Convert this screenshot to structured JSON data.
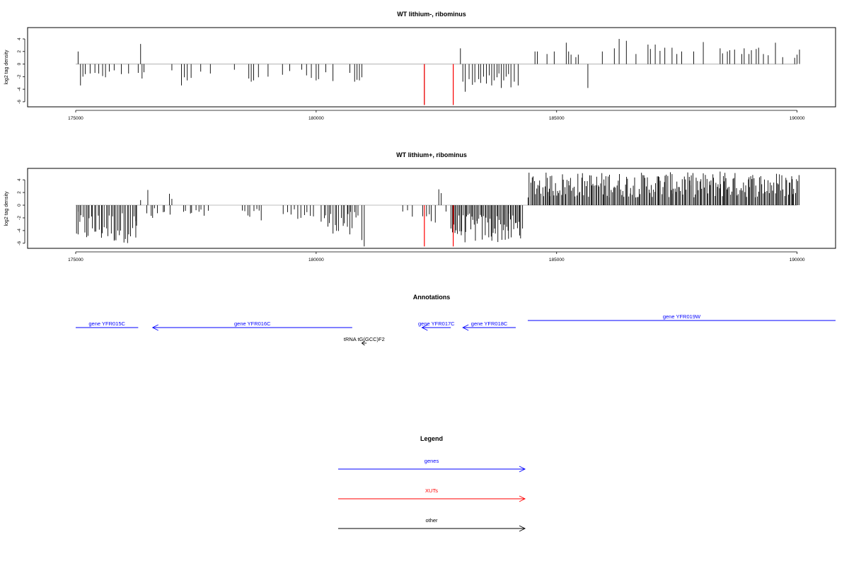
{
  "colors": {
    "gene": "#0000ff",
    "xut": "#ff0000",
    "other": "#000000",
    "bar": "#000000",
    "baseline": "#aaaaaa"
  },
  "chart_data": [
    {
      "type": "bar",
      "title": "WT lithium-, ribominus",
      "ylabel": "log2 tag density",
      "xlim": [
        174000,
        190800
      ],
      "ylim": [
        -6.8,
        5.8
      ],
      "xticks": [
        175000,
        180000,
        185000,
        190000
      ],
      "xtick_labels": [
        "175000",
        "180000",
        "185000",
        "190000"
      ],
      "yticks": [
        -6,
        -4,
        -2,
        0,
        2,
        4
      ],
      "ytick_labels": [
        "-6",
        "-4",
        "-2",
        "0",
        "2",
        "4"
      ],
      "baseline_range": [
        175000,
        190000
      ],
      "points": [
        [
          175050,
          2.0
        ],
        [
          175100,
          -3.4
        ],
        [
          175150,
          -2.0
        ],
        [
          175200,
          -1.6
        ],
        [
          175300,
          -1.5
        ],
        [
          175400,
          -1.4
        ],
        [
          175480,
          -1.5
        ],
        [
          175560,
          -1.9
        ],
        [
          175620,
          -2.1
        ],
        [
          175700,
          -1.2
        ],
        [
          175800,
          -1.0
        ],
        [
          175950,
          -1.6
        ],
        [
          176100,
          -1.5
        ],
        [
          176300,
          -1.4
        ],
        [
          176350,
          3.2
        ],
        [
          176380,
          -2.3
        ],
        [
          176420,
          -1.3
        ],
        [
          177000,
          -1.0
        ],
        [
          177200,
          -3.4
        ],
        [
          177260,
          -2.1
        ],
        [
          177320,
          -2.6
        ],
        [
          177400,
          -2.2
        ],
        [
          177600,
          -1.2
        ],
        [
          177800,
          -1.5
        ],
        [
          178300,
          -0.9
        ],
        [
          178600,
          -2.3
        ],
        [
          178650,
          -2.8
        ],
        [
          178700,
          -2.6
        ],
        [
          178800,
          -2.1
        ],
        [
          179000,
          -2.0
        ],
        [
          179300,
          -1.7
        ],
        [
          179450,
          -1.1
        ],
        [
          179700,
          -0.9
        ],
        [
          179800,
          -1.8
        ],
        [
          179900,
          -2.2
        ],
        [
          180000,
          -2.6
        ],
        [
          180050,
          -2.4
        ],
        [
          180200,
          -1.3
        ],
        [
          180350,
          -2.7
        ],
        [
          180700,
          -1.4
        ],
        [
          180800,
          -2.8
        ],
        [
          180850,
          -2.5
        ],
        [
          180900,
          -2.6
        ],
        [
          180950,
          -2.1
        ],
        [
          182250,
          -6.5
        ],
        [
          182850,
          -6.5
        ],
        [
          183000,
          2.5
        ],
        [
          183050,
          -2.8
        ],
        [
          183100,
          -4.4
        ],
        [
          183180,
          -2.4
        ],
        [
          183250,
          -3.3
        ],
        [
          183300,
          -2.9
        ],
        [
          183380,
          -2.4
        ],
        [
          183420,
          -3.0
        ],
        [
          183480,
          -2.0
        ],
        [
          183540,
          -3.1
        ],
        [
          183600,
          -1.8
        ],
        [
          183650,
          -3.4
        ],
        [
          183700,
          -2.6
        ],
        [
          183760,
          -2.1
        ],
        [
          183800,
          -1.5
        ],
        [
          183850,
          -3.8
        ],
        [
          183900,
          -2.6
        ],
        [
          183950,
          -2.0
        ],
        [
          184000,
          -1.6
        ],
        [
          184050,
          -3.7
        ],
        [
          184120,
          -2.8
        ],
        [
          184200,
          -3.4
        ],
        [
          184550,
          2.0
        ],
        [
          184600,
          2.0
        ],
        [
          184800,
          1.6
        ],
        [
          184950,
          2.0
        ],
        [
          185200,
          3.4
        ],
        [
          185250,
          2.0
        ],
        [
          185300,
          1.5
        ],
        [
          185400,
          1.1
        ],
        [
          185450,
          1.5
        ],
        [
          185650,
          -3.8
        ],
        [
          185950,
          2.0
        ],
        [
          186200,
          2.5
        ],
        [
          186300,
          4.0
        ],
        [
          186450,
          3.7
        ],
        [
          186650,
          1.6
        ],
        [
          186900,
          3.1
        ],
        [
          186950,
          2.4
        ],
        [
          187050,
          3.1
        ],
        [
          187150,
          2.1
        ],
        [
          187250,
          2.6
        ],
        [
          187400,
          2.6
        ],
        [
          187500,
          1.6
        ],
        [
          187600,
          2.0
        ],
        [
          187850,
          2.0
        ],
        [
          188050,
          3.5
        ],
        [
          188400,
          2.5
        ],
        [
          188450,
          1.7
        ],
        [
          188550,
          2.0
        ],
        [
          188600,
          2.2
        ],
        [
          188700,
          2.3
        ],
        [
          188850,
          1.6
        ],
        [
          188900,
          2.5
        ],
        [
          189000,
          1.6
        ],
        [
          189050,
          2.2
        ],
        [
          189150,
          2.4
        ],
        [
          189200,
          2.6
        ],
        [
          189300,
          1.6
        ],
        [
          189400,
          1.4
        ],
        [
          189550,
          3.4
        ],
        [
          189700,
          1.1
        ],
        [
          189950,
          1.0
        ],
        [
          190000,
          1.5
        ],
        [
          190050,
          2.3
        ]
      ],
      "xut_positions": [
        182250,
        182850
      ]
    },
    {
      "type": "bar",
      "title": "WT lithium+, ribominus",
      "ylabel": "log2 tag density",
      "xlim": [
        174000,
        190800
      ],
      "ylim": [
        -6.8,
        5.8
      ],
      "xticks": [
        175000,
        180000,
        185000,
        190000
      ],
      "xtick_labels": [
        "175000",
        "180000",
        "185000",
        "190000"
      ],
      "yticks": [
        -6,
        -4,
        -2,
        0,
        2,
        4
      ],
      "ytick_labels": [
        "-6",
        "-4",
        "-2",
        "0",
        "2",
        "4"
      ],
      "baseline_range": [
        175000,
        190000
      ],
      "dense_segments": [
        [
          175000,
          176300,
          -6.0,
          -1.0,
          38
        ],
        [
          176450,
          177000,
          -2.2,
          -0.4,
          7
        ],
        [
          177200,
          177800,
          -2.0,
          -0.6,
          9
        ],
        [
          178450,
          178900,
          -2.4,
          -0.6,
          8
        ],
        [
          179300,
          180000,
          -2.4,
          -0.5,
          10
        ],
        [
          180100,
          180900,
          -4.5,
          -1.0,
          20
        ],
        [
          182200,
          182500,
          -2.8,
          -0.8,
          5
        ],
        [
          182800,
          184300,
          -6.0,
          -1.3,
          60
        ],
        [
          184400,
          190050,
          1.2,
          5.2,
          230
        ]
      ],
      "points": [
        [
          175050,
          -4.6
        ],
        [
          175800,
          -5.6
        ],
        [
          176250,
          -5.1
        ],
        [
          176350,
          0.8
        ],
        [
          176500,
          2.4
        ],
        [
          176600,
          -2.0
        ],
        [
          176950,
          1.8
        ],
        [
          177000,
          1.0
        ],
        [
          180700,
          -4.6
        ],
        [
          180950,
          -5.5
        ],
        [
          181000,
          -6.5
        ],
        [
          181800,
          -1.0
        ],
        [
          181900,
          -0.8
        ],
        [
          182000,
          -1.8
        ],
        [
          182550,
          2.5
        ],
        [
          182600,
          1.9
        ],
        [
          182700,
          -1.0
        ],
        [
          184000,
          -5.3
        ],
        [
          184850,
          2.6
        ],
        [
          186100,
          4.8
        ],
        [
          187400,
          4.9
        ],
        [
          187800,
          4.7
        ],
        [
          188400,
          5.3
        ],
        [
          188500,
          5.1
        ],
        [
          189000,
          4.4
        ],
        [
          189900,
          4.1
        ]
      ],
      "xut_positions": [
        182250,
        182850
      ]
    }
  ],
  "annotations": {
    "title": "Annotations",
    "genes": [
      {
        "label": "gene YFR015C",
        "start": 175000,
        "end": 176300,
        "strand": "-",
        "row": 2,
        "color": "gene",
        "arrow": false
      },
      {
        "label": "gene YFR016C",
        "start": 176600,
        "end": 180750,
        "strand": "-",
        "row": 2,
        "color": "gene",
        "arrow": true
      },
      {
        "label": "gene YFR017C",
        "start": 182200,
        "end": 182800,
        "strand": "-",
        "row": 2,
        "color": "gene",
        "arrow": true
      },
      {
        "label": "gene YFR018C",
        "start": 183050,
        "end": 184150,
        "strand": "-",
        "row": 2,
        "color": "gene",
        "arrow": true
      },
      {
        "label": "gene YFR019W",
        "start": 184400,
        "end": 190800,
        "strand": "+",
        "row": 1,
        "color": "gene",
        "arrow": false
      },
      {
        "label": "tRNA tG(GCC)F2",
        "start": 180950,
        "end": 181050,
        "strand": "-",
        "row": 3,
        "color": "other",
        "arrow": true
      }
    ]
  },
  "legend": {
    "title": "Legend",
    "items": [
      {
        "label": "genes",
        "color": "gene"
      },
      {
        "label": "XUTs",
        "color": "xut"
      },
      {
        "label": "other",
        "color": "other"
      }
    ]
  }
}
